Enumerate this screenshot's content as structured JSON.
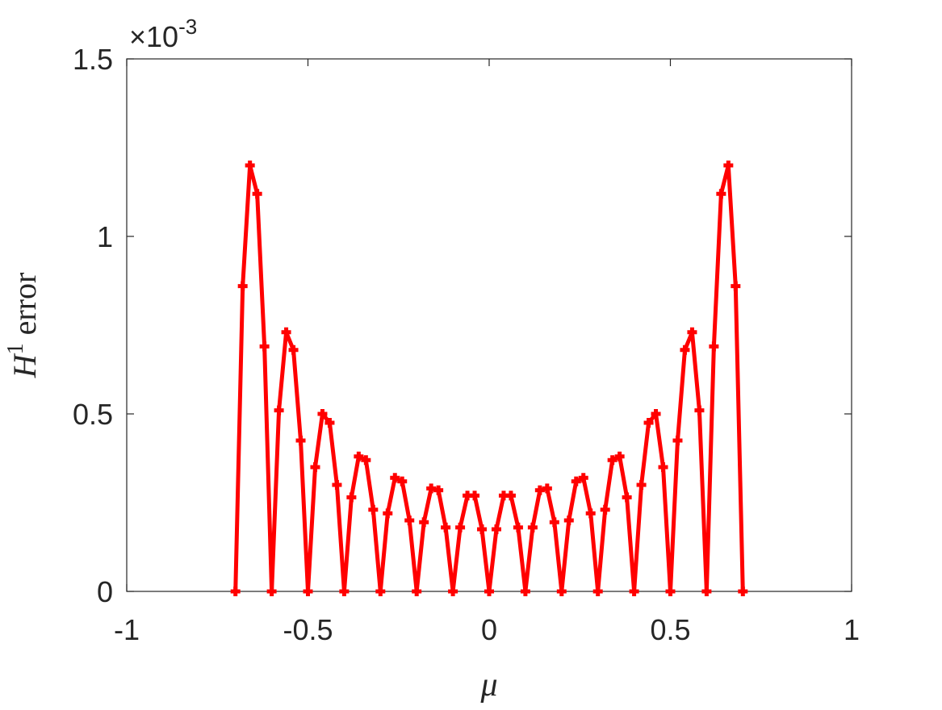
{
  "chart_data": {
    "type": "line",
    "xlabel": "μ",
    "ylabel_parts": {
      "base": "H",
      "sup": "1",
      "rest": "error"
    },
    "y_multiplier": {
      "base": "×10",
      "exponent": "-3"
    },
    "x": [
      -0.7,
      -0.68,
      -0.66,
      -0.64,
      -0.62,
      -0.6,
      -0.58,
      -0.56,
      -0.54,
      -0.52,
      -0.5,
      -0.48,
      -0.46,
      -0.44,
      -0.42,
      -0.4,
      -0.38,
      -0.36,
      -0.34,
      -0.32,
      -0.3,
      -0.28,
      -0.26,
      -0.24,
      -0.22,
      -0.2,
      -0.18,
      -0.16,
      -0.14,
      -0.12,
      -0.1,
      -0.08,
      -0.06,
      -0.04,
      -0.02,
      0,
      0.02,
      0.04,
      0.06,
      0.08,
      0.1,
      0.12,
      0.14,
      0.16,
      0.18,
      0.2,
      0.22,
      0.24,
      0.26,
      0.28,
      0.3,
      0.32,
      0.34,
      0.36,
      0.38,
      0.4,
      0.42,
      0.44,
      0.46,
      0.48,
      0.5,
      0.52,
      0.54,
      0.56,
      0.58,
      0.6,
      0.62,
      0.64,
      0.66,
      0.68,
      0.7
    ],
    "series": [
      {
        "color": "#ff0000",
        "values": [
          0,
          0.86,
          1.2,
          1.12,
          0.69,
          0,
          0.51,
          0.73,
          0.68,
          0.425,
          0,
          0.35,
          0.5,
          0.475,
          0.3,
          0,
          0.265,
          0.38,
          0.37,
          0.23,
          0,
          0.22,
          0.32,
          0.31,
          0.2,
          0,
          0.195,
          0.29,
          0.285,
          0.18,
          0,
          0.18,
          0.27,
          0.27,
          0.175,
          0,
          0.175,
          0.27,
          0.27,
          0.18,
          0,
          0.18,
          0.285,
          0.29,
          0.195,
          0,
          0.2,
          0.31,
          0.32,
          0.22,
          0,
          0.23,
          0.37,
          0.38,
          0.265,
          0,
          0.3,
          0.475,
          0.5,
          0.35,
          0,
          0.425,
          0.68,
          0.73,
          0.51,
          0,
          0.69,
          1.12,
          1.2,
          0.86,
          0
        ]
      }
    ],
    "xlim": [
      -1,
      1
    ],
    "xticks": [
      -1,
      -0.5,
      0,
      0.5,
      1
    ],
    "ylim": [
      0,
      1.5
    ],
    "yticks": [
      0,
      0.5,
      1,
      1.5
    ],
    "box": true
  }
}
